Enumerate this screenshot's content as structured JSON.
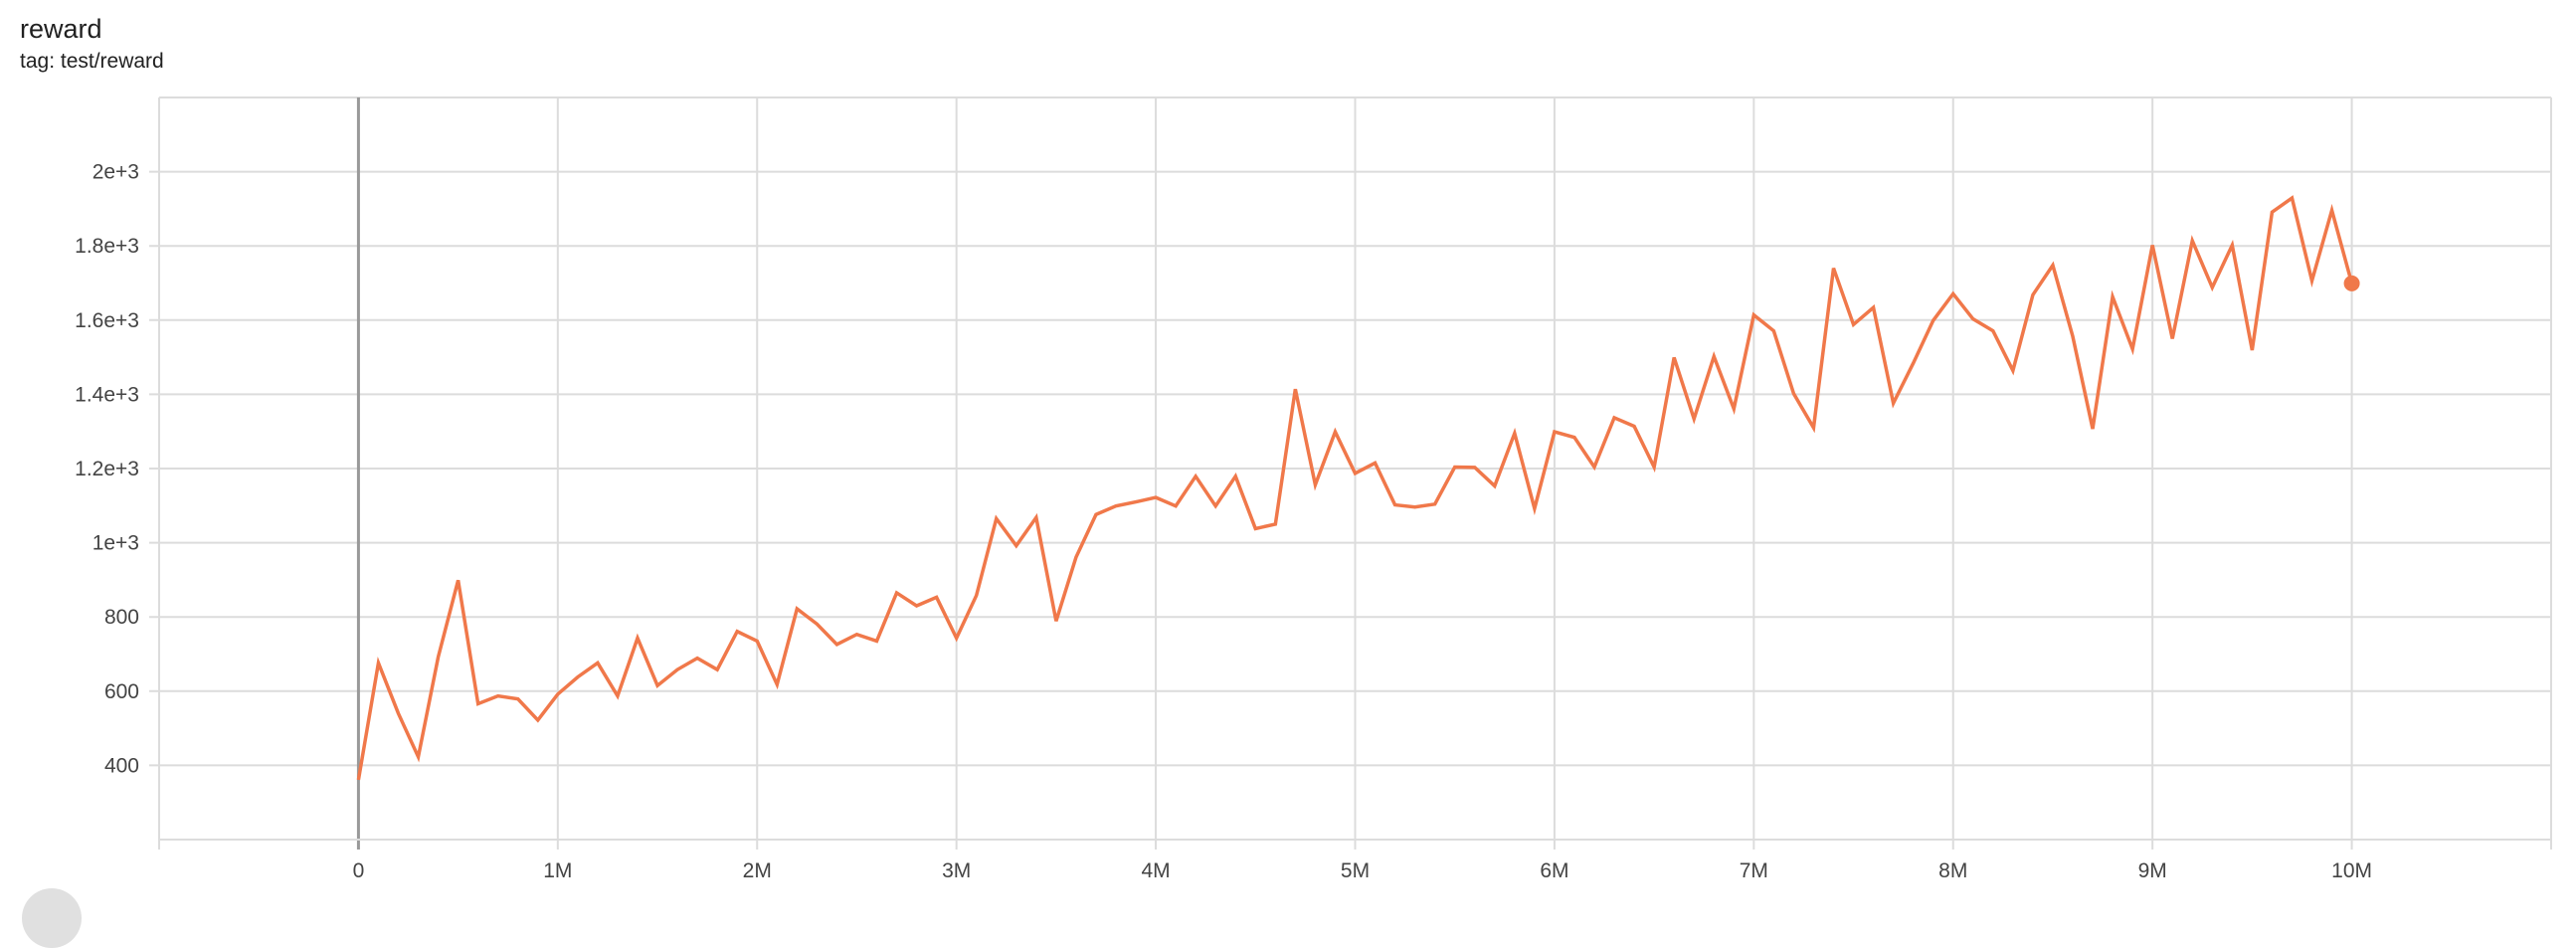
{
  "header": {
    "title": "reward",
    "subtitle": "tag: test/reward"
  },
  "colors": {
    "series": "#f0784a",
    "grid": "#dcdcdc",
    "zero_axis": "#999999"
  },
  "chart_data": {
    "type": "line",
    "title": "reward",
    "subtitle": "tag: test/reward",
    "xlabel": "",
    "ylabel": "",
    "xlim": [
      -1000000,
      11000000
    ],
    "ylim": [
      200,
      2200
    ],
    "grid": true,
    "x_ticks": [
      {
        "value": 0,
        "label": "0"
      },
      {
        "value": 1000000,
        "label": "1M"
      },
      {
        "value": 2000000,
        "label": "2M"
      },
      {
        "value": 3000000,
        "label": "3M"
      },
      {
        "value": 4000000,
        "label": "4M"
      },
      {
        "value": 5000000,
        "label": "5M"
      },
      {
        "value": 6000000,
        "label": "6M"
      },
      {
        "value": 7000000,
        "label": "7M"
      },
      {
        "value": 8000000,
        "label": "8M"
      },
      {
        "value": 9000000,
        "label": "9M"
      },
      {
        "value": 10000000,
        "label": "10M"
      }
    ],
    "y_ticks": [
      {
        "value": 400,
        "label": "400"
      },
      {
        "value": 600,
        "label": "600"
      },
      {
        "value": 800,
        "label": "800"
      },
      {
        "value": 1000,
        "label": "1e+3"
      },
      {
        "value": 1200,
        "label": "1.2e+3"
      },
      {
        "value": 1400,
        "label": "1.4e+3"
      },
      {
        "value": 1600,
        "label": "1.6e+3"
      },
      {
        "value": 1800,
        "label": "1.8e+3"
      },
      {
        "value": 2000,
        "label": "2e+3"
      }
    ],
    "series": [
      {
        "x_step": 100000,
        "x_start": 0,
        "values": [
          361,
          676,
          540,
          423,
          692,
          899,
          566,
          587,
          579,
          522,
          592,
          638,
          676,
          587,
          743,
          615,
          658,
          689,
          658,
          761,
          735,
          618,
          822,
          781,
          726,
          753,
          735,
          865,
          830,
          853,
          743,
          858,
          1065,
          992,
          1068,
          789,
          961,
          1076,
          1099,
          1110,
          1122,
          1099,
          1179,
          1099,
          1179,
          1038,
          1050,
          1414,
          1156,
          1299,
          1187,
          1215,
          1102,
          1096,
          1104,
          1204,
          1203,
          1153,
          1295,
          1092,
          1299,
          1284,
          1204,
          1337,
          1314,
          1204,
          1499,
          1334,
          1502,
          1361,
          1614,
          1571,
          1402,
          1310,
          1740,
          1588,
          1634,
          1376,
          1484,
          1599,
          1671,
          1603,
          1571,
          1464,
          1668,
          1748,
          1556,
          1307,
          1663,
          1522,
          1802,
          1550,
          1814,
          1688,
          1802,
          1519,
          1891,
          1929,
          1706,
          1896,
          1699
        ]
      }
    ]
  }
}
